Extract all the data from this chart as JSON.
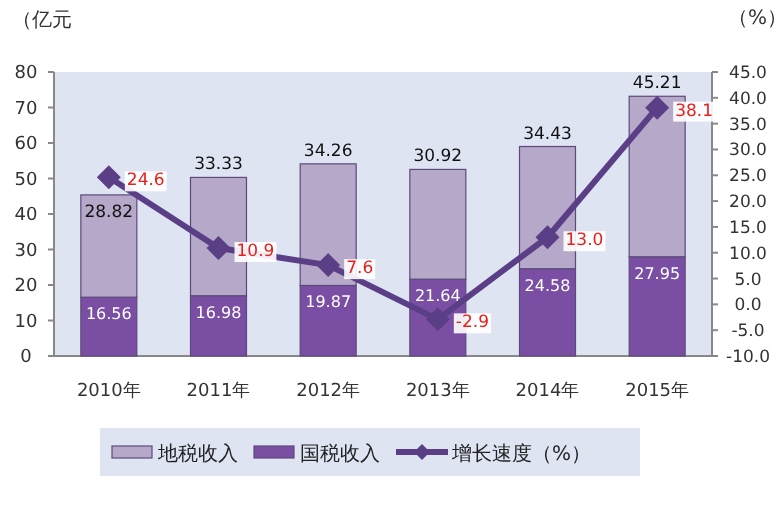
{
  "chart_data": {
    "type": "bar",
    "stacked": true,
    "categories": [
      "2010年",
      "2011年",
      "2012年",
      "2013年",
      "2014年",
      "2015年"
    ],
    "ylabel": "（亿元",
    "y2label": "（%）",
    "ylim": [
      0,
      80
    ],
    "yticks": [
      0,
      10,
      20,
      30,
      40,
      50,
      60,
      70,
      80
    ],
    "y2lim": [
      -10,
      45
    ],
    "y2ticks": [
      {
        "value": -10,
        "label": "-10.0"
      },
      {
        "value": -5,
        "label": "-5.0"
      },
      {
        "value": 0,
        "label": "0.0"
      },
      {
        "value": 5,
        "label": "5.0"
      },
      {
        "value": 10,
        "label": "10.0"
      },
      {
        "value": 15,
        "label": "15.0"
      },
      {
        "value": 20,
        "label": "20.0"
      },
      {
        "value": 25,
        "label": "25.0"
      },
      {
        "value": 30,
        "label": "30.0"
      },
      {
        "value": 35,
        "label": "35.0"
      },
      {
        "value": 40,
        "label": "40.0"
      },
      {
        "value": 45,
        "label": "45.0"
      }
    ],
    "series": [
      {
        "name": "国税收入",
        "color": "#7a4fa3",
        "values": [
          16.56,
          16.98,
          19.87,
          21.64,
          24.58,
          27.95
        ],
        "value_labels": [
          "16.56",
          "16.98",
          "19.87",
          "21.64",
          "24.58",
          "27.95"
        ]
      },
      {
        "name": "地税收入",
        "color": "#b5a8c8",
        "values": [
          28.82,
          33.33,
          34.26,
          30.92,
          34.43,
          45.21
        ],
        "value_labels": [
          "28.82",
          "33.33",
          "34.26",
          "30.92",
          "34.43",
          "45.21"
        ]
      },
      {
        "name": "增长速度（%）",
        "type": "line",
        "axis": "y2",
        "color": "#5b3f86",
        "marker": "diamond",
        "values": [
          24.6,
          10.9,
          7.6,
          -2.9,
          13.0,
          38.1
        ],
        "value_labels": [
          "24.6",
          "10.9",
          "7.6",
          "-2.9",
          "13.0",
          "38.1"
        ]
      }
    ],
    "legend": "bottom"
  }
}
